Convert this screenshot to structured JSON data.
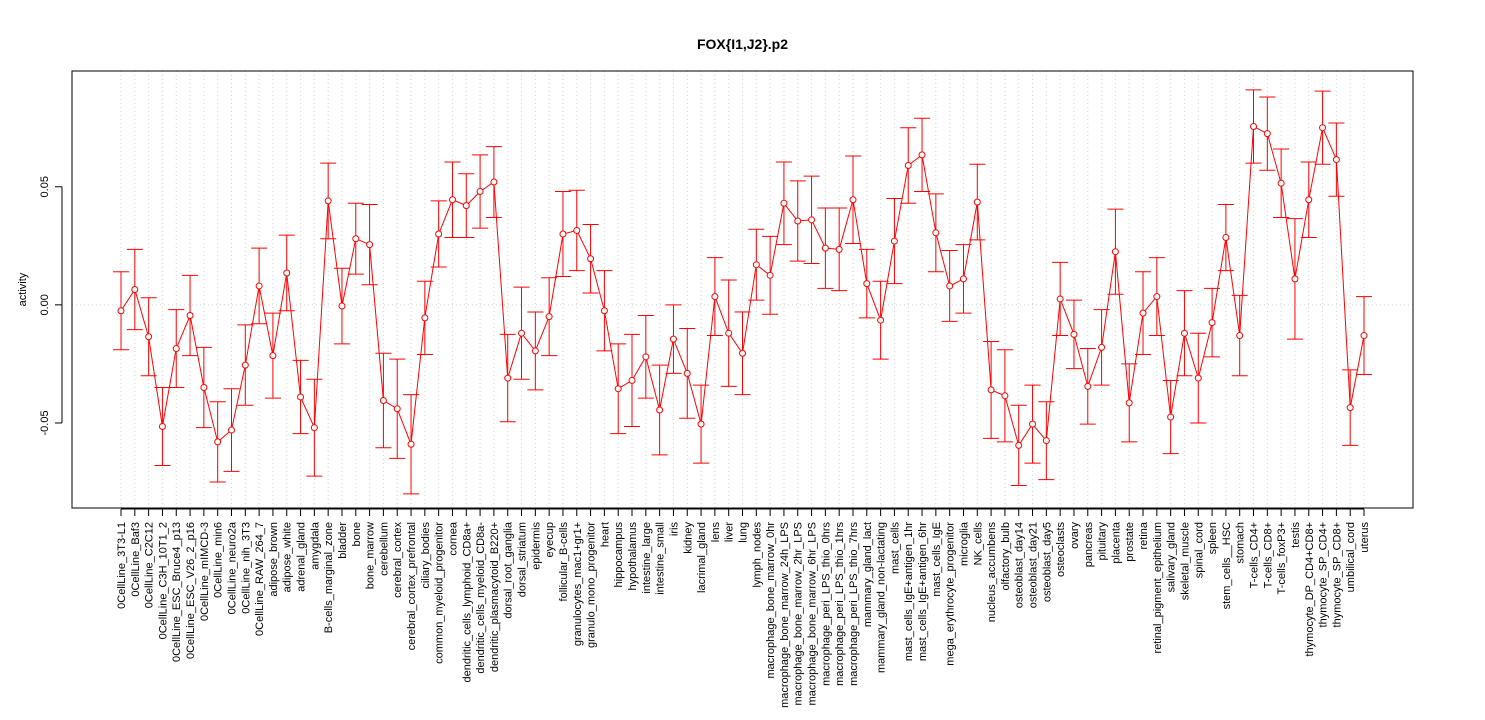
{
  "chart_data": {
    "type": "line",
    "title": "FOX{I1,J2}.p2",
    "xlabel": "",
    "ylabel": "activity",
    "ylim": [
      -0.086,
      0.099
    ],
    "yticks": [
      -0.05,
      0.0,
      0.05
    ],
    "ytick_labels": [
      "-0.05",
      "0.00",
      "0.05"
    ],
    "grid": "dotted vertical at each category; dotted horizontal reference line at 0",
    "color": "#ff0000",
    "series": [
      {
        "name": "activity",
        "categories": [
          "0CellLine_3T3-L1",
          "0CellLine_Baf3",
          "0CellLine_C2C12",
          "0CellLine_C3H_10T1_2",
          "0CellLine_ESC_Bruce4_p13",
          "0CellLine_ESC_V26_2_p16",
          "0CellLine_mIMCD-3",
          "0CellLine_min6",
          "0CellLine_neuro2a",
          "0CellLine_nih_3T3",
          "0CellLine_RAW_264_7",
          "adipose_brown",
          "adipose_white",
          "adrenal_gland",
          "amygdala",
          "B-cells_marginal_zone",
          "bladder",
          "bone",
          "bone_marrow",
          "cerebellum",
          "cerebral_cortex",
          "cerebral_cortex_prefrontal",
          "ciliary_bodies",
          "common_myeloid_progenitor",
          "cornea",
          "dendritic_cells_lymphoid_CD8a+",
          "dendritic_cells_myeloid_CD8a-",
          "dendritic_plasmacytoid_B220+",
          "dorsal_root_ganglia",
          "dorsal_striatum",
          "epidermis",
          "eyecup",
          "follicular_B-cells",
          "granulocytes_mac1+gr1+",
          "granulo_mono_progenitor",
          "heart",
          "hippocampus",
          "hypothalamus",
          "intestine_large",
          "intestine_small",
          "iris",
          "kidney",
          "lacrimal_gland",
          "lens",
          "liver",
          "lung",
          "lymph_nodes",
          "macrophage_bone_marrow_0hr",
          "macrophage_bone_marrow_24h_LPS",
          "macrophage_bone_marrow_2hr_LPS",
          "macrophage_bone_marrow_6hr_LPS",
          "macrophage_peri_LPS_thio_0hrs",
          "macrophage_peri_LPS_thio_1hrs",
          "macrophage_peri_LPS_thio_7hrs",
          "mammary_gland_lact",
          "mammary_gland_non-lactating",
          "mast_cells",
          "mast_cells_IgE+antigen_1hr",
          "mast_cells_IgE+antigen_6hr",
          "mast_cells_IgE",
          "mega_erythrocyte_progenitor",
          "microglia",
          "NK_cells",
          "nucleus_accumbens",
          "olfactory_bulb",
          "osteoblast_day14",
          "osteoblast_day21",
          "osteoblast_day5",
          "osteoclasts",
          "ovary",
          "pancreas",
          "pituitary",
          "placenta",
          "prostate",
          "retina",
          "retinal_pigment_epithelium",
          "salivary_gland",
          "skeletal_muscle",
          "spinal_cord",
          "spleen",
          "stem_cells__HSC",
          "stomach",
          "T-cells_CD4+",
          "T-cells_CD8+",
          "T-cells_foxP3+",
          "testis",
          "thymocyte_DP_CD4+CD8+",
          "thymocyte_SP_CD4+",
          "thymocyte_SP_CD8+",
          "umbilical_cord",
          "uterus"
        ],
        "values": [
          -0.0025,
          0.0065,
          -0.0135,
          -0.0515,
          -0.0185,
          -0.0045,
          -0.035,
          -0.058,
          -0.053,
          -0.0255,
          0.008,
          -0.0215,
          0.0135,
          -0.039,
          -0.052,
          0.044,
          -0.0005,
          0.028,
          0.0255,
          -0.0405,
          -0.044,
          -0.059,
          -0.0055,
          0.03,
          0.0445,
          0.042,
          0.048,
          0.052,
          -0.031,
          -0.012,
          -0.0195,
          -0.005,
          0.03,
          0.0315,
          0.0195,
          -0.0025,
          -0.0355,
          -0.032,
          -0.022,
          -0.0445,
          -0.0145,
          -0.029,
          -0.0505,
          0.0035,
          -0.012,
          -0.0205,
          0.017,
          0.0125,
          0.043,
          0.0355,
          0.036,
          0.024,
          0.0235,
          0.0445,
          0.009,
          -0.0065,
          0.027,
          0.059,
          0.0635,
          0.0305,
          0.008,
          0.011,
          0.0435,
          -0.036,
          -0.0385,
          -0.0595,
          -0.0505,
          -0.0575,
          0.0025,
          -0.0125,
          -0.0345,
          -0.018,
          0.0225,
          -0.0415,
          -0.0035,
          0.0035,
          -0.0475,
          -0.012,
          -0.031,
          -0.0075,
          0.0285,
          -0.013,
          0.0755,
          0.0725,
          0.0515,
          0.011,
          0.0445,
          0.075,
          0.0615,
          -0.0435,
          -0.013
        ],
        "error": [
          0.0165,
          0.017,
          0.0165,
          0.0165,
          0.0165,
          0.017,
          0.017,
          0.017,
          0.0175,
          0.017,
          0.016,
          0.018,
          0.016,
          0.0155,
          0.0205,
          0.016,
          0.016,
          0.015,
          0.017,
          0.02,
          0.021,
          0.021,
          0.0155,
          0.014,
          0.016,
          0.0135,
          0.0155,
          0.015,
          0.0185,
          0.0195,
          0.0165,
          0.0165,
          0.018,
          0.017,
          0.0145,
          0.017,
          0.019,
          0.0195,
          0.0175,
          0.019,
          0.0145,
          0.019,
          0.0165,
          0.0165,
          0.0225,
          0.0175,
          0.015,
          0.0165,
          0.0175,
          0.017,
          0.0185,
          0.017,
          0.0175,
          0.0185,
          0.0145,
          0.0165,
          0.018,
          0.016,
          0.0155,
          0.0165,
          0.015,
          0.0145,
          0.016,
          0.0205,
          0.0195,
          0.017,
          0.0165,
          0.0165,
          0.0155,
          0.0145,
          0.016,
          0.016,
          0.018,
          0.0165,
          0.0175,
          0.0165,
          0.0155,
          0.018,
          0.019,
          0.0145,
          0.014,
          0.017,
          0.0155,
          0.0155,
          0.0145,
          0.0255,
          0.016,
          0.0155,
          0.0155,
          0.016,
          0.0165
        ]
      }
    ]
  }
}
